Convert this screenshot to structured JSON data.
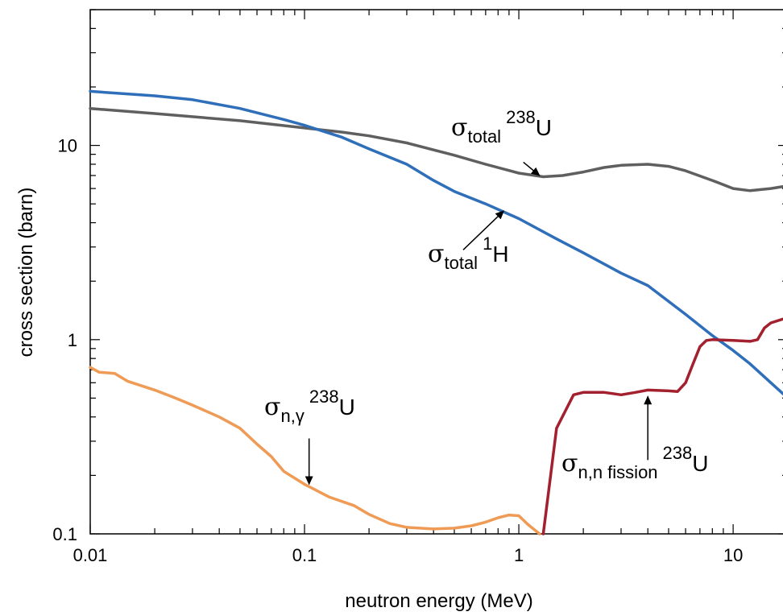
{
  "chart_data": {
    "type": "line",
    "xlabel": "neutron energy (MeV)",
    "ylabel": "cross section (barn)",
    "xscale": "log",
    "yscale": "log",
    "xlim": [
      0.01,
      18
    ],
    "ylim": [
      0.1,
      50
    ],
    "x_ticks": [
      "0.01",
      "0.1",
      "1",
      "10"
    ],
    "y_ticks": [
      "0.1",
      "1",
      "10"
    ],
    "grid": false,
    "legend": "none",
    "series": [
      {
        "key": "total_U238",
        "color": "#5f5f5f",
        "points": [
          [
            0.01,
            15.5
          ],
          [
            0.02,
            14.6
          ],
          [
            0.05,
            13.4
          ],
          [
            0.1,
            12.3
          ],
          [
            0.15,
            11.7
          ],
          [
            0.2,
            11.2
          ],
          [
            0.3,
            10.3
          ],
          [
            0.5,
            8.9
          ],
          [
            0.7,
            8.0
          ],
          [
            1.0,
            7.2
          ],
          [
            1.3,
            6.9
          ],
          [
            1.6,
            7.0
          ],
          [
            2.0,
            7.3
          ],
          [
            2.5,
            7.7
          ],
          [
            3.0,
            7.9
          ],
          [
            4.0,
            8.0
          ],
          [
            5.0,
            7.8
          ],
          [
            6.0,
            7.4
          ],
          [
            8.0,
            6.6
          ],
          [
            10.0,
            6.0
          ],
          [
            12.0,
            5.85
          ],
          [
            15.0,
            6.0
          ],
          [
            18.0,
            6.2
          ]
        ]
      },
      {
        "key": "total_H1",
        "color": "#2f6fba",
        "points": [
          [
            0.01,
            19.0
          ],
          [
            0.02,
            18.0
          ],
          [
            0.03,
            17.2
          ],
          [
            0.05,
            15.5
          ],
          [
            0.08,
            13.6
          ],
          [
            0.1,
            12.7
          ],
          [
            0.15,
            11.0
          ],
          [
            0.2,
            9.6
          ],
          [
            0.3,
            8.0
          ],
          [
            0.4,
            6.6
          ],
          [
            0.5,
            5.8
          ],
          [
            0.7,
            5.0
          ],
          [
            1.0,
            4.2
          ],
          [
            1.5,
            3.3
          ],
          [
            2.0,
            2.8
          ],
          [
            3.0,
            2.2
          ],
          [
            4.0,
            1.9
          ],
          [
            6.0,
            1.35
          ],
          [
            8.0,
            1.05
          ],
          [
            10.0,
            0.88
          ],
          [
            12.0,
            0.75
          ],
          [
            15.0,
            0.6
          ],
          [
            18.0,
            0.5
          ]
        ]
      },
      {
        "key": "ngamma_U238",
        "color": "#ef9a55",
        "points": [
          [
            0.01,
            0.72
          ],
          [
            0.011,
            0.68
          ],
          [
            0.013,
            0.67
          ],
          [
            0.015,
            0.61
          ],
          [
            0.02,
            0.55
          ],
          [
            0.025,
            0.5
          ],
          [
            0.03,
            0.46
          ],
          [
            0.04,
            0.4
          ],
          [
            0.05,
            0.35
          ],
          [
            0.06,
            0.29
          ],
          [
            0.07,
            0.25
          ],
          [
            0.08,
            0.21
          ],
          [
            0.1,
            0.18
          ],
          [
            0.13,
            0.155
          ],
          [
            0.17,
            0.14
          ],
          [
            0.2,
            0.126
          ],
          [
            0.25,
            0.113
          ],
          [
            0.3,
            0.108
          ],
          [
            0.4,
            0.106
          ],
          [
            0.5,
            0.107
          ],
          [
            0.6,
            0.11
          ],
          [
            0.7,
            0.115
          ],
          [
            0.8,
            0.121
          ],
          [
            0.9,
            0.125
          ],
          [
            1.0,
            0.124
          ],
          [
            1.1,
            0.112
          ],
          [
            1.25,
            0.1
          ]
        ]
      },
      {
        "key": "fission_U238",
        "color": "#a3202e",
        "points": [
          [
            1.3,
            0.1
          ],
          [
            1.5,
            0.35
          ],
          [
            1.8,
            0.52
          ],
          [
            2.0,
            0.535
          ],
          [
            2.5,
            0.535
          ],
          [
            3.0,
            0.52
          ],
          [
            3.5,
            0.535
          ],
          [
            4.0,
            0.55
          ],
          [
            5.0,
            0.545
          ],
          [
            5.5,
            0.54
          ],
          [
            6.0,
            0.6
          ],
          [
            6.5,
            0.75
          ],
          [
            7.0,
            0.92
          ],
          [
            7.5,
            0.99
          ],
          [
            8.0,
            1.0
          ],
          [
            10.0,
            0.99
          ],
          [
            12.0,
            0.98
          ],
          [
            13.0,
            1.0
          ],
          [
            14.0,
            1.15
          ],
          [
            15.0,
            1.22
          ],
          [
            18.0,
            1.3
          ]
        ]
      }
    ],
    "annotations": [
      {
        "key": "ann_total_U238",
        "symbol": "σ",
        "subscript": "total",
        "superscript": "238",
        "isotope": "U",
        "arrow_from": [
          1.05,
          8.2
        ],
        "arrow_to": [
          1.25,
          7.0
        ]
      },
      {
        "key": "ann_total_H1",
        "symbol": "σ",
        "subscript": "total",
        "superscript": "1",
        "isotope": "H",
        "arrow_from": [
          0.55,
          2.9
        ],
        "arrow_to": [
          0.85,
          4.6
        ]
      },
      {
        "key": "ann_ngamma_U238",
        "symbol": "σ",
        "subscript": "n,γ",
        "superscript": "238",
        "isotope": "U",
        "arrow_from": [
          0.105,
          0.31
        ],
        "arrow_to": [
          0.105,
          0.18
        ]
      },
      {
        "key": "ann_fission_U238",
        "symbol": "σ",
        "subscript": "n,n fission",
        "superscript": "238",
        "isotope": "U",
        "arrow_from": [
          4.0,
          0.24
        ],
        "arrow_to": [
          4.0,
          0.51
        ]
      }
    ]
  }
}
